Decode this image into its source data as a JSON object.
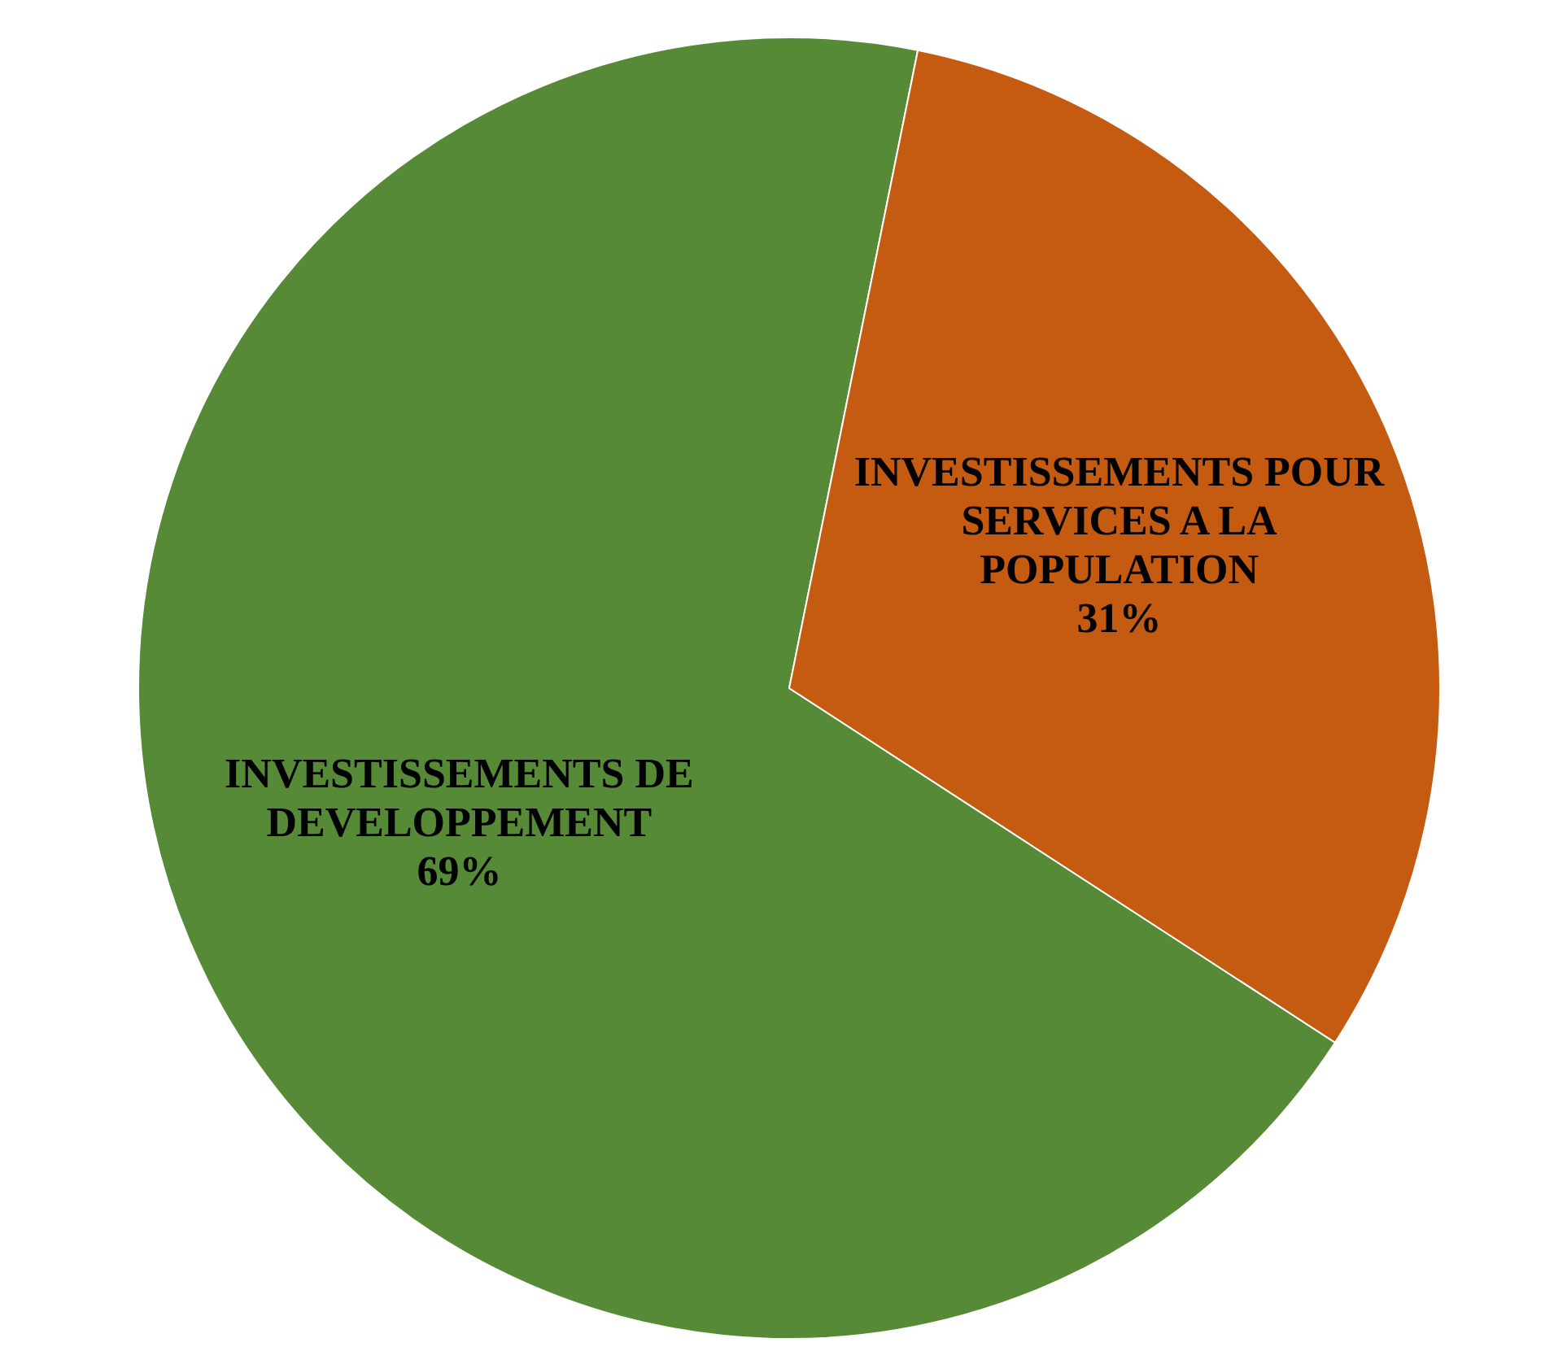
{
  "chart_data": {
    "type": "pie",
    "categories": [
      "INVESTISSEMENTS DE DEVELOPPEMENT",
      "INVESTISSEMENTS POUR SERVICES A LA POPULATION"
    ],
    "values": [
      69,
      31
    ],
    "colors": [
      "#578a37",
      "#c55a11"
    ],
    "value_labels": [
      "69%",
      "31%"
    ]
  }
}
